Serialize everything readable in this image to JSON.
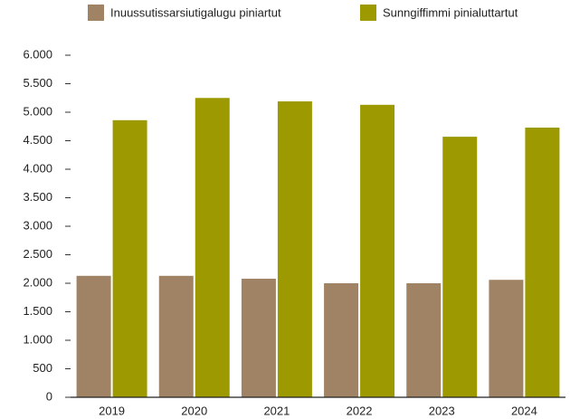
{
  "chart_data": {
    "type": "bar",
    "categories": [
      "2019",
      "2020",
      "2021",
      "2022",
      "2023",
      "2024"
    ],
    "series": [
      {
        "name": "Inuussutissarsiutigalugu piniartut",
        "color": "#a08264",
        "values": [
          2130,
          2130,
          2080,
          2000,
          2000,
          2060
        ]
      },
      {
        "name": "Sunngiffimmi pinialuttartut",
        "color": "#9c9a00",
        "values": [
          4860,
          5250,
          5190,
          5130,
          4570,
          4730
        ]
      }
    ],
    "ylim": [
      0,
      6000
    ],
    "yticks": [
      0,
      500,
      {
        "value": 1000,
        "label": "1.000"
      },
      {
        "value": 1500,
        "label": "1.500"
      },
      {
        "value": 2000,
        "label": "2.000"
      },
      {
        "value": 2500,
        "label": "2.500"
      },
      {
        "value": 3000,
        "label": "3.000"
      },
      {
        "value": 3500,
        "label": "3.500"
      },
      {
        "value": 4000,
        "label": "4.000"
      },
      {
        "value": 4500,
        "label": "4.500"
      },
      {
        "value": 5000,
        "label": "5.000"
      },
      {
        "value": 5500,
        "label": "5.500"
      },
      {
        "value": 6000,
        "label": "6.000"
      }
    ],
    "grid": false,
    "legend": "top"
  }
}
